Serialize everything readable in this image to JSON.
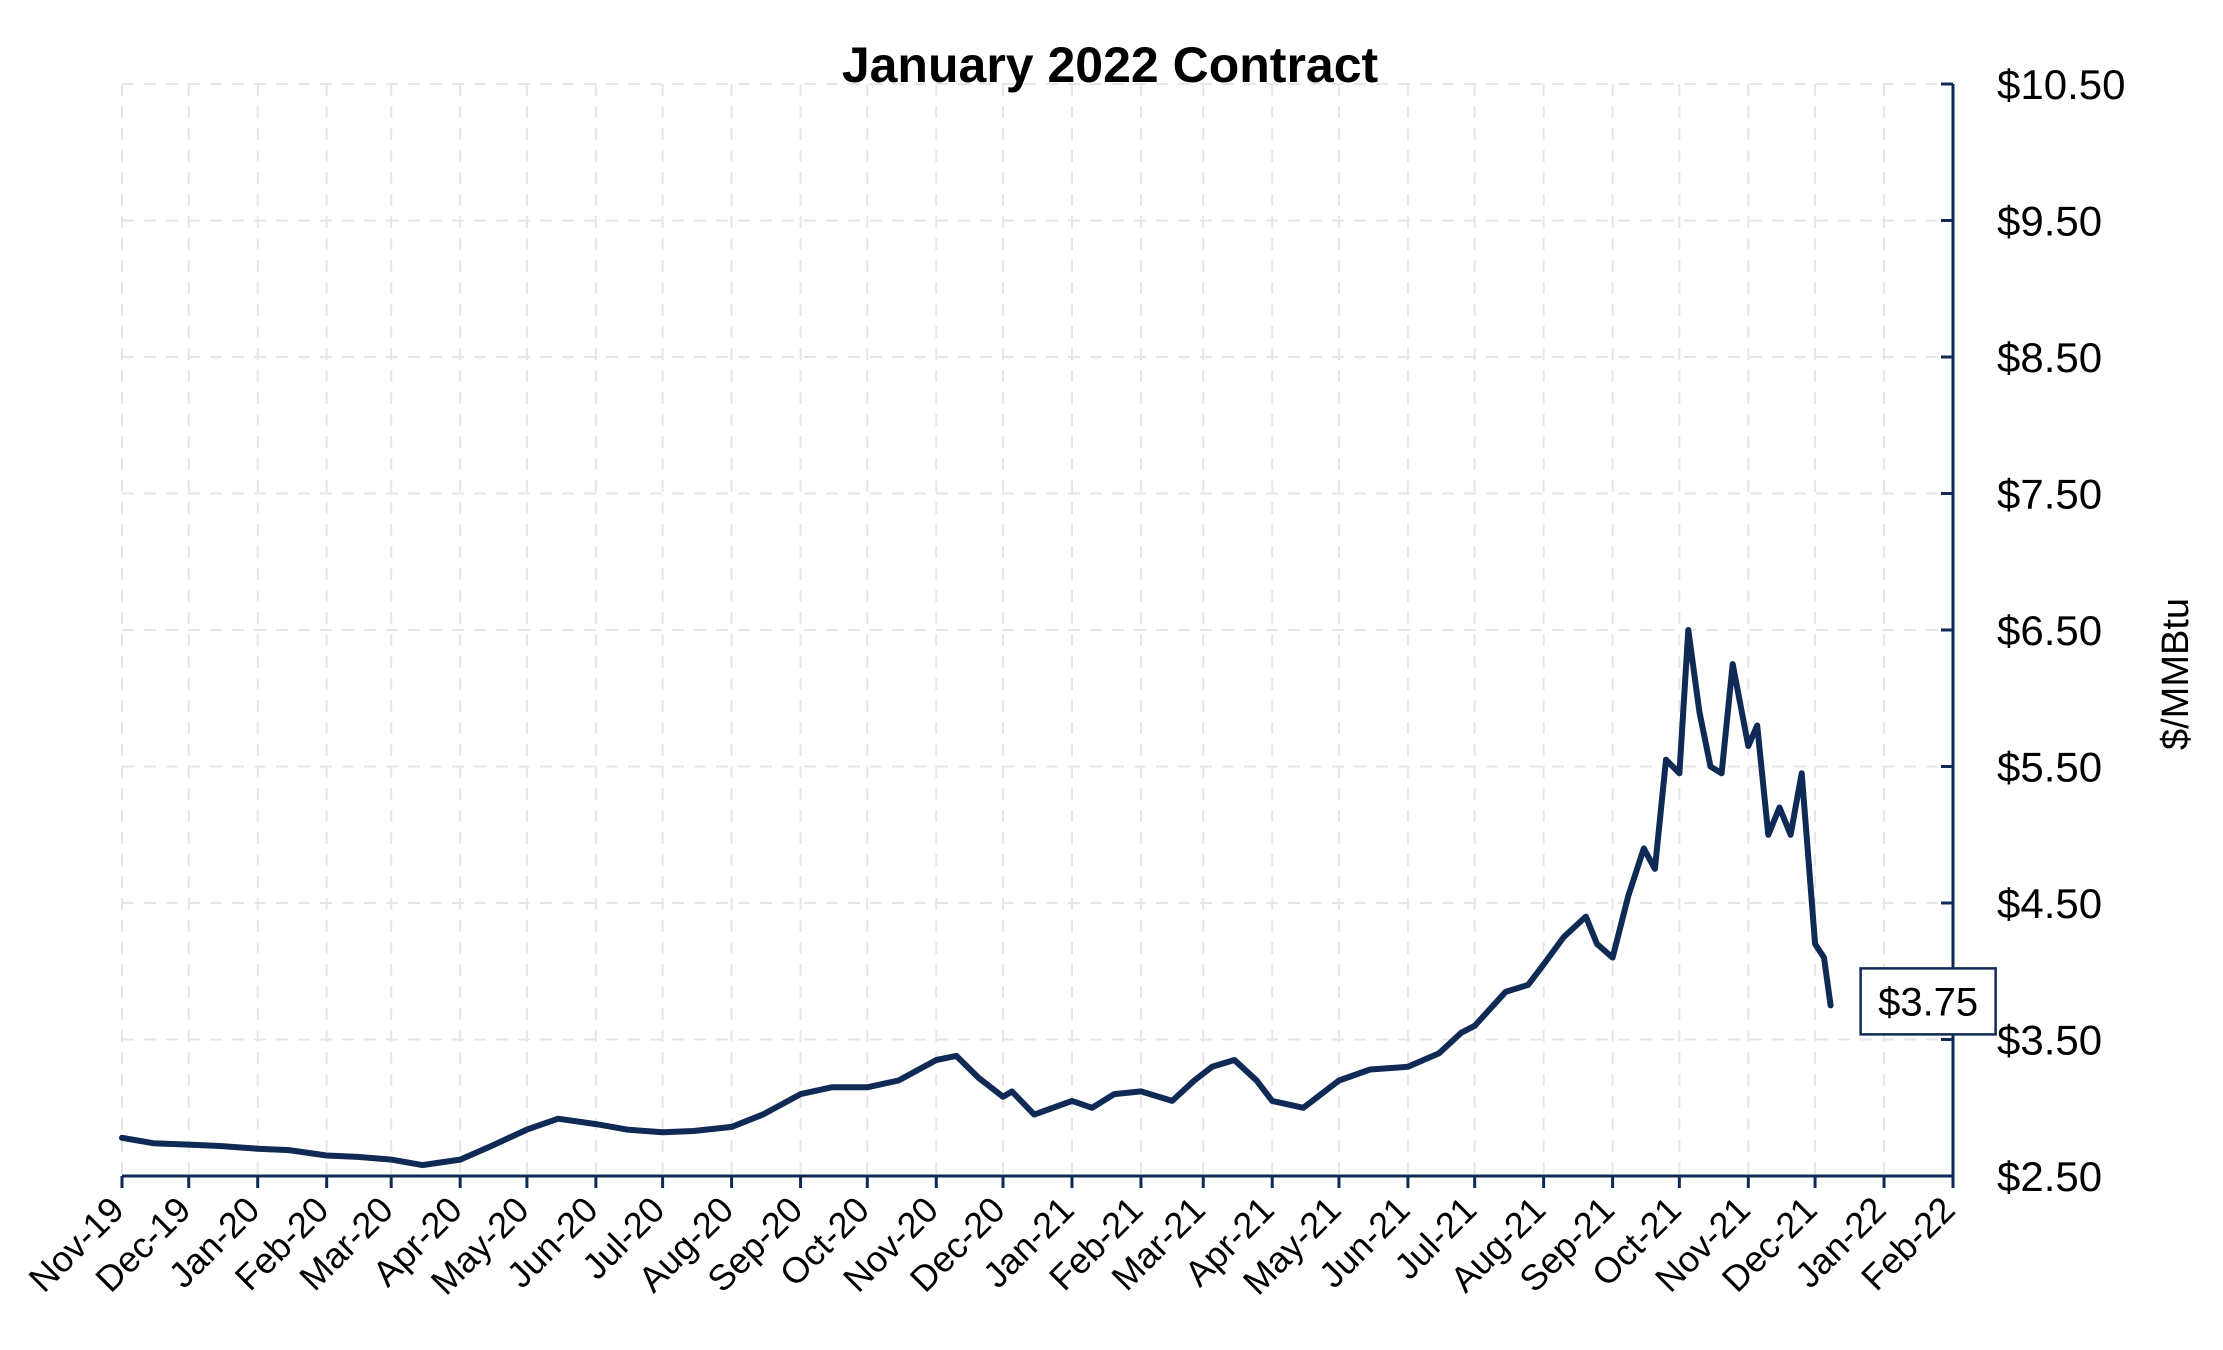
{
  "chart_data": {
    "type": "line",
    "title": "January 2022 Contract",
    "xlabel": "",
    "ylabel": "$/MMBtu",
    "x_tick_labels": [
      "Nov-19",
      "Dec-19",
      "Jan-20",
      "Feb-20",
      "Mar-20",
      "Apr-20",
      "May-20",
      "Jun-20",
      "Jul-20",
      "Aug-20",
      "Sep-20",
      "Oct-20",
      "Nov-20",
      "Dec-20",
      "Jan-21",
      "Feb-21",
      "Mar-21",
      "Apr-21",
      "May-21",
      "Jun-21",
      "Jul-21",
      "Aug-21",
      "Sep-21",
      "Oct-21",
      "Nov-21",
      "Dec-21",
      "Jan-22",
      "Feb-22"
    ],
    "y_tick_labels": [
      "$2.50",
      "$3.50",
      "$4.50",
      "$5.50",
      "$6.50",
      "$7.50",
      "$8.50",
      "$9.50",
      "$10.50"
    ],
    "y_tick_values": [
      2.5,
      3.5,
      4.5,
      5.5,
      6.5,
      7.5,
      8.5,
      9.5,
      10.5
    ],
    "ylim": [
      2.5,
      10.5
    ],
    "y_axis_position": "right",
    "grid": true,
    "line_color": "#0e2a55",
    "last_value_label": "$3.75",
    "series": [
      {
        "x": [
          "2019-11-01",
          "2019-11-15",
          "2019-12-01",
          "2019-12-15",
          "2020-01-01",
          "2020-01-15",
          "2020-02-01",
          "2020-02-15",
          "2020-03-01",
          "2020-03-15",
          "2020-04-01",
          "2020-04-15",
          "2020-05-01",
          "2020-05-15",
          "2020-06-01",
          "2020-06-15",
          "2020-07-01",
          "2020-07-15",
          "2020-08-01",
          "2020-08-15",
          "2020-09-01",
          "2020-09-15",
          "2020-10-01",
          "2020-10-15",
          "2020-11-01",
          "2020-11-10",
          "2020-11-20",
          "2020-12-01",
          "2020-12-05",
          "2020-12-15",
          "2021-01-01",
          "2021-01-10",
          "2021-01-20",
          "2021-02-01",
          "2021-02-15",
          "2021-02-25",
          "2021-03-05",
          "2021-03-15",
          "2021-03-25",
          "2021-04-01",
          "2021-04-15",
          "2021-05-01",
          "2021-05-15",
          "2021-06-01",
          "2021-06-15",
          "2021-06-25",
          "2021-07-01",
          "2021-07-15",
          "2021-07-25",
          "2021-08-01",
          "2021-08-10",
          "2021-08-20",
          "2021-08-25",
          "2021-09-01",
          "2021-09-08",
          "2021-09-15",
          "2021-09-20",
          "2021-09-25",
          "2021-10-01",
          "2021-10-05",
          "2021-10-10",
          "2021-10-15",
          "2021-10-20",
          "2021-10-25",
          "2021-11-01",
          "2021-11-05",
          "2021-11-10",
          "2021-11-15",
          "2021-11-20",
          "2021-11-25",
          "2021-12-01",
          "2021-12-05",
          "2021-12-08"
        ],
        "y": [
          2.78,
          2.74,
          2.73,
          2.72,
          2.7,
          2.69,
          2.65,
          2.64,
          2.62,
          2.58,
          2.62,
          2.72,
          2.84,
          2.92,
          2.88,
          2.84,
          2.82,
          2.83,
          2.86,
          2.95,
          3.1,
          3.15,
          3.15,
          3.2,
          3.35,
          3.38,
          3.22,
          3.08,
          3.12,
          2.95,
          3.05,
          3.0,
          3.1,
          3.12,
          3.05,
          3.2,
          3.3,
          3.35,
          3.2,
          3.05,
          3.0,
          3.2,
          3.28,
          3.3,
          3.4,
          3.55,
          3.6,
          3.85,
          3.9,
          4.05,
          4.25,
          4.4,
          4.2,
          4.1,
          4.55,
          4.9,
          4.75,
          5.55,
          5.45,
          6.5,
          5.9,
          5.5,
          5.45,
          6.25,
          5.65,
          5.8,
          5.0,
          5.2,
          5.0,
          5.45,
          4.2,
          4.1,
          3.75
        ]
      }
    ],
    "x_range": [
      "2019-11-01",
      "2022-02-28"
    ]
  }
}
